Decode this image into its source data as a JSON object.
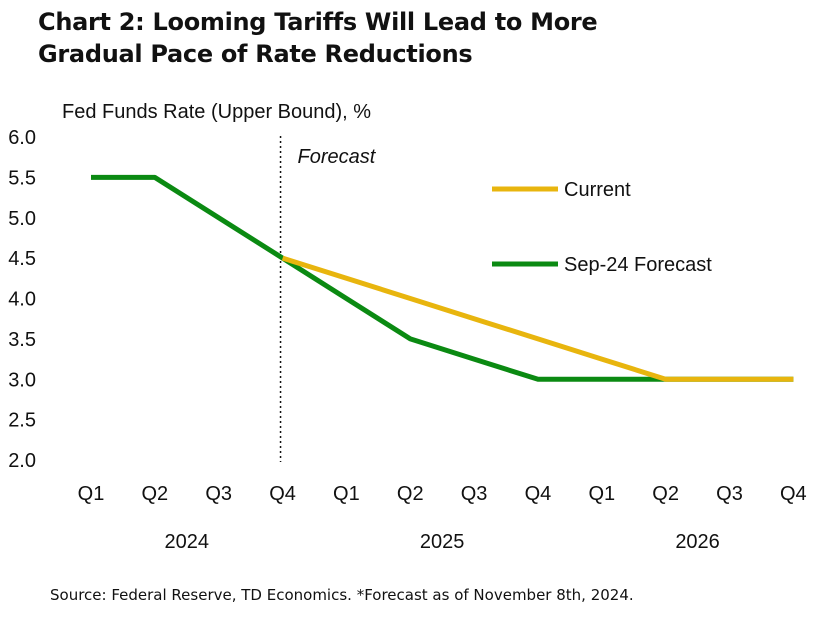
{
  "title_line1": "Chart 2: Looming Tariffs Will Lead to More",
  "title_line2": "Gradual Pace of Rate Reductions",
  "source": "Source: Federal Reserve, TD Economics.  *Forecast as of November 8th, 2024.",
  "chart_data": {
    "type": "line",
    "ylabel": "Fed Funds Rate (Upper Bound), %",
    "ylim": [
      2.0,
      6.0
    ],
    "yticks": [
      "2.0",
      "2.5",
      "3.0",
      "3.5",
      "4.0",
      "4.5",
      "5.0",
      "5.5",
      "6.0"
    ],
    "categories": [
      "Q1",
      "Q2",
      "Q3",
      "Q4",
      "Q1",
      "Q2",
      "Q3",
      "Q4",
      "Q1",
      "Q2",
      "Q3",
      "Q4"
    ],
    "years": [
      "2024",
      "2025",
      "2026"
    ],
    "forecast_label": "Forecast",
    "forecast_divider_after_index": 3,
    "grid": false,
    "legend_position": "upper-right",
    "series": [
      {
        "name": "Current",
        "color": "#E8B50E",
        "values": [
          null,
          null,
          null,
          4.5,
          4.25,
          4.0,
          3.75,
          3.5,
          3.25,
          3.0,
          3.0,
          3.0
        ]
      },
      {
        "name": "Sep-24 Forecast",
        "color": "#0B8A12",
        "values": [
          5.5,
          5.5,
          5.0,
          4.5,
          4.0,
          3.5,
          3.25,
          3.0,
          3.0,
          3.0,
          3.0,
          3.0
        ]
      }
    ]
  }
}
